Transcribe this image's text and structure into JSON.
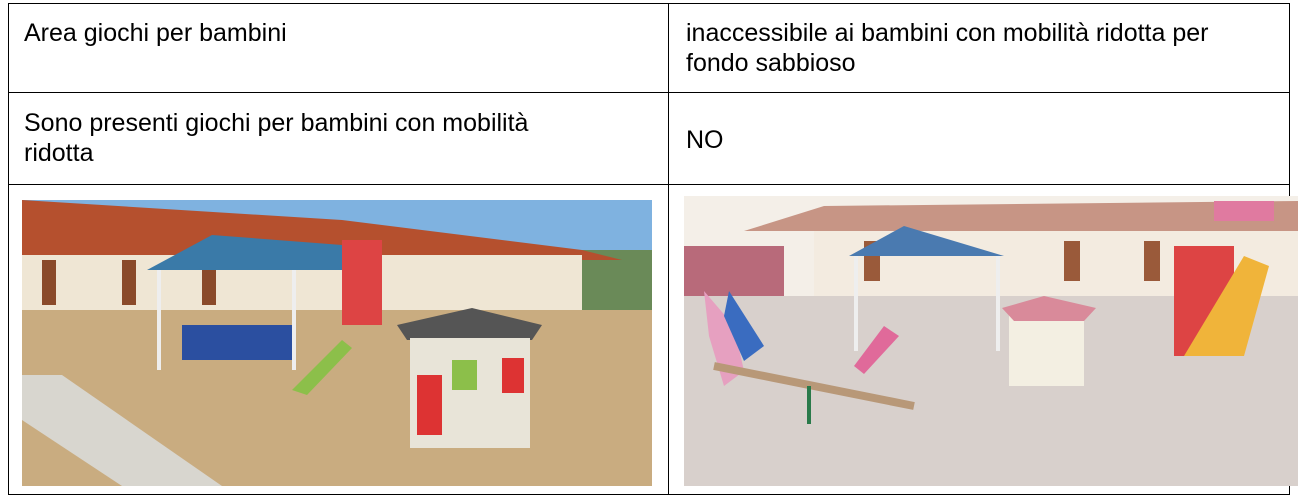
{
  "table": {
    "rows": [
      [
        "Area giochi per bambini",
        "inaccessibile ai bambini con mobilità ridotta per fondo sabbioso"
      ],
      [
        "Sono presenti giochi per bambini con mobilità ridotta",
        "NO"
      ]
    ]
  }
}
